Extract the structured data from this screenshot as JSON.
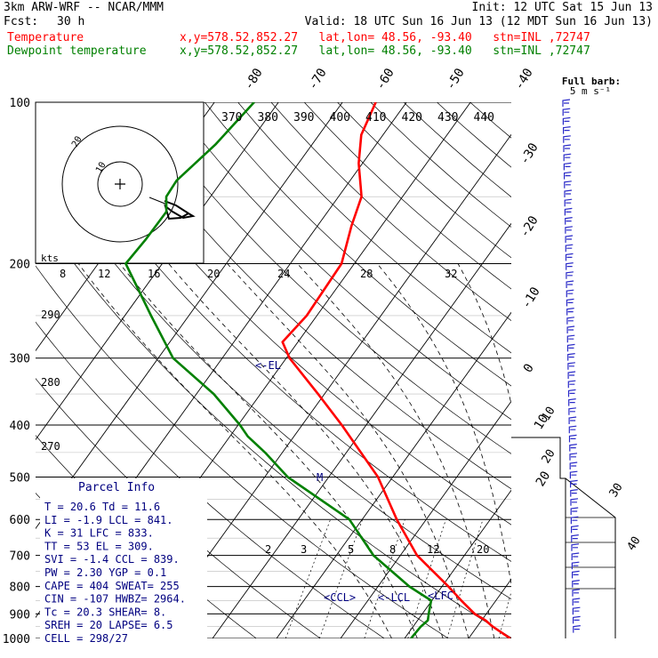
{
  "header": {
    "model": "3km ARW-WRF -- NCAR/MMM",
    "init": "Init: 12 UTC Sat 15 Jun 13",
    "fcst_label": "Fcst:",
    "fcst_value": "30 h",
    "valid": "Valid: 18 UTC Sun 16 Jun 13 (12 MDT Sun 16 Jun 13)",
    "temp_name": "Temperature",
    "dew_name": "Dewpoint temperature",
    "location": "x,y=578.52,852.27   lat,lon= 48.56, -93.40   stn=INL ,72747"
  },
  "colors": {
    "temperature": "#ff0000",
    "dewpoint": "#008000",
    "parcel": "#000080",
    "grid": "#000000"
  },
  "wind_panel": {
    "title": "Full barb:",
    "subtitle": "5 m s⁻¹",
    "speed_labels": [
      "10",
      "20",
      "30",
      "40"
    ]
  },
  "hodograph": {
    "ring_labels": [
      "20",
      "10"
    ],
    "units": "kts"
  },
  "labels": {
    "el": "<-EL",
    "ccl": "<CCL>",
    "lcl": "<-LCL",
    "lfc": "<LFC",
    "m": "M"
  },
  "parcel_info": {
    "title": "Parcel Info",
    "rows": [
      "T  =    20.6  Td =  11.6",
      "LI =    -1.9  LCL =  841.",
      "K  =     31  LFC =  833.",
      "TT =     53  EL  =  309.",
      "SVI =   -1.4  CCL =  839.",
      "PW =   2.30  YGP =   0.1",
      "CAPE =   404  SWEAT=  255",
      "CIN =   -107  HWBZ= 2964.",
      "Tc =   20.3  SHEAR=   8.",
      "SREH =   20  LAPSE=   6.5",
      "CELL = 298/27"
    ]
  },
  "chart_data": {
    "type": "line",
    "title": "",
    "xlabel": "",
    "ylabel": "",
    "y_scale": "log-pressure (hPa)",
    "ylim": [
      1000,
      100
    ],
    "pressure_ticks": [
      "100",
      "200",
      "300",
      "400",
      "500",
      "600",
      "700",
      "800",
      "900",
      "1000"
    ],
    "isotherm_labels": [
      "-80",
      "-70",
      "-60",
      "-50",
      "-40",
      "-30",
      "-20",
      "-10",
      "0",
      "10",
      "20",
      "30",
      "40"
    ],
    "theta_labels": [
      "370",
      "380",
      "390",
      "400",
      "410",
      "420",
      "430",
      "440"
    ],
    "theta_side_labels": [
      "290",
      "280",
      "270"
    ],
    "mixing_ratio_labels": [
      "8",
      "12",
      "16",
      "20",
      "24",
      "28",
      "32",
      "2",
      "3",
      "5",
      "8",
      "12",
      "20"
    ],
    "series": [
      {
        "name": "Temperature",
        "pressure": [
          1000,
          950,
          925,
          900,
          850,
          800,
          700,
          600,
          500,
          400,
          350,
          300,
          280,
          250,
          200,
          170,
          150,
          130,
          115,
          100
        ],
        "temperature_c": [
          26.5,
          22.4,
          20.6,
          18.2,
          14.6,
          11.0,
          2.6,
          -4.6,
          -12.3,
          -23.8,
          -31.0,
          -39.5,
          -42.4,
          -41.6,
          -42.0,
          -44.7,
          -46.4,
          -50.6,
          -53.4,
          -54.8
        ]
      },
      {
        "name": "Dewpoint temperature",
        "pressure": [
          1000,
          950,
          925,
          900,
          850,
          800,
          700,
          600,
          500,
          450,
          420,
          400,
          350,
          300,
          250,
          200,
          180,
          160,
          150,
          140,
          120,
          100
        ],
        "dewpoint_c": [
          11.0,
          11.2,
          11.6,
          11.0,
          9.9,
          4.9,
          -4.2,
          -12.0,
          -26.4,
          -32.7,
          -37.2,
          -39.7,
          -47.3,
          -57.7,
          -65.9,
          -75.7,
          -75.3,
          -75.2,
          -76.9,
          -77.1,
          -75.1,
          -73.8
        ]
      }
    ]
  }
}
